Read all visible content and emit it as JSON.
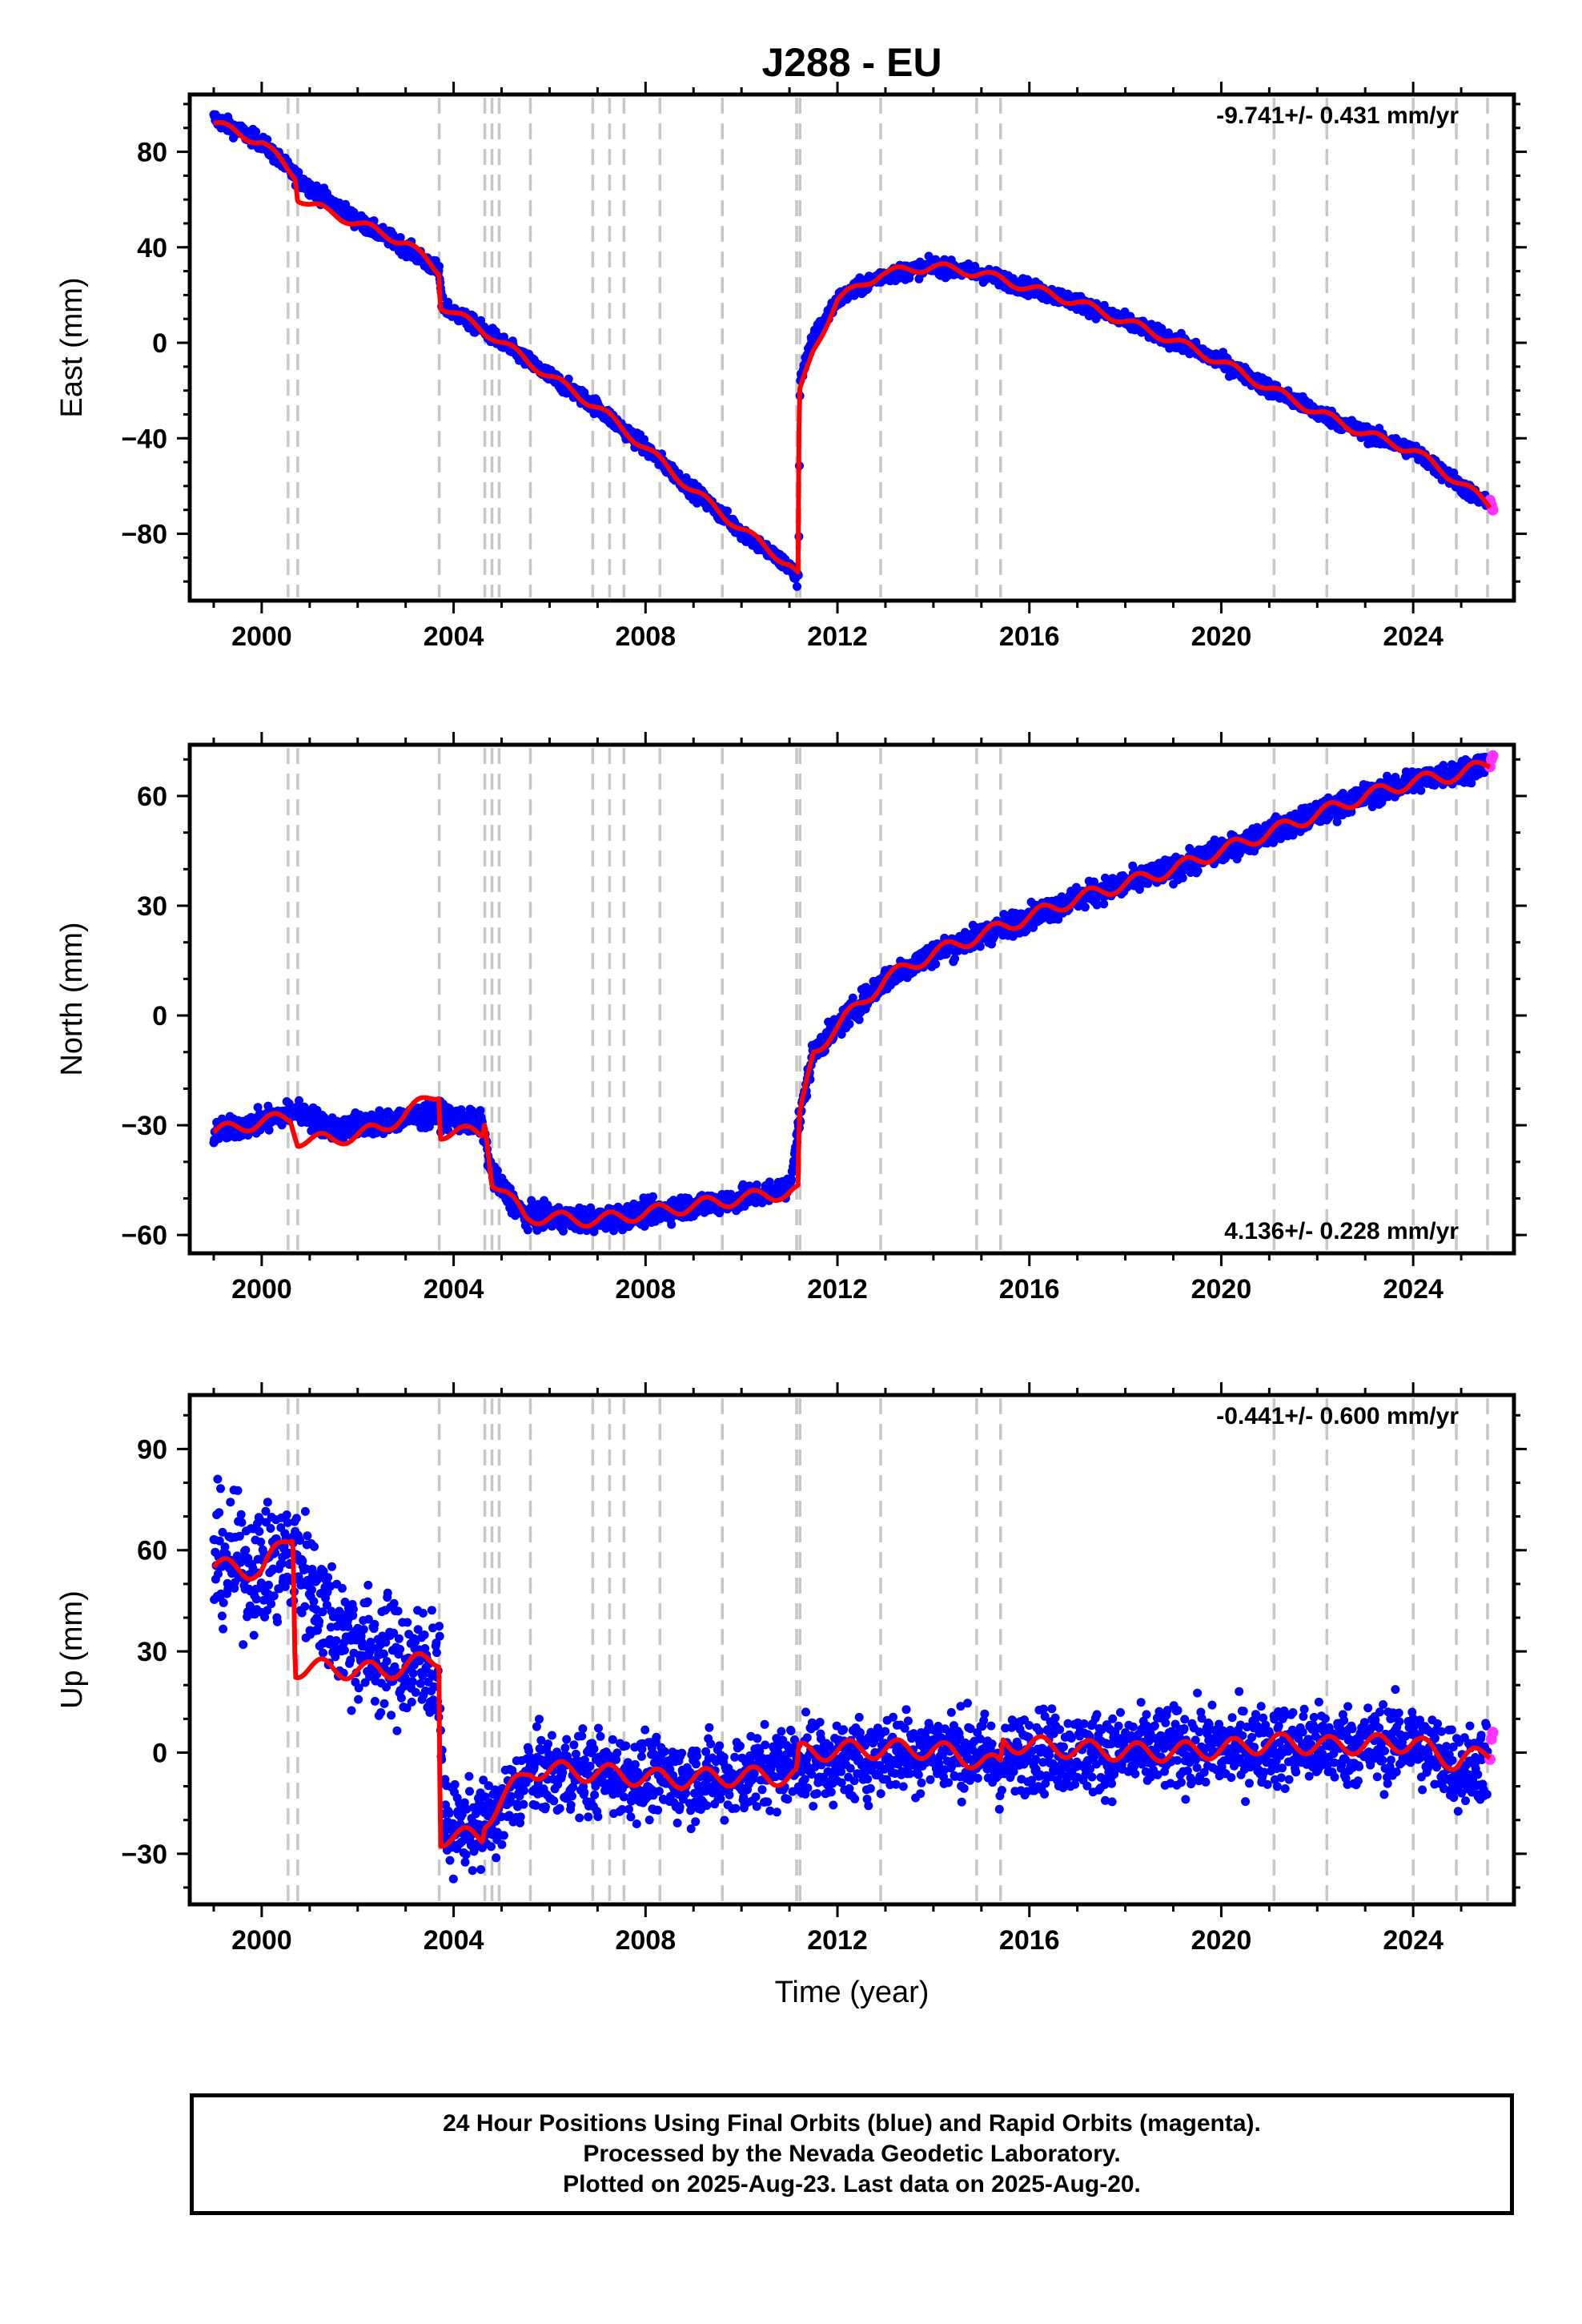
{
  "title": "J288 - EU",
  "footer": {
    "line1": "24 Hour Positions Using Final Orbits (blue) and Rapid Orbits (magenta).",
    "line2": "Processed by the Nevada Geodetic Laboratory.",
    "line3": "Plotted on 2025-Aug-23. Last data on 2025-Aug-20."
  },
  "colors": {
    "final_orbits": "#0000ff",
    "rapid_orbits": "#ff33ff",
    "model_fit": "#ff0000",
    "event_lines": "#c8c8c8"
  },
  "event_lines_years": [
    2000.55,
    2000.75,
    2003.7,
    2004.65,
    2004.8,
    2004.95,
    2005.6,
    2006.9,
    2007.25,
    2007.55,
    2008.3,
    2009.6,
    2011.15,
    2011.22,
    2012.9,
    2014.9,
    2015.4,
    2021.1,
    2022.2,
    2024.0,
    2024.9,
    2025.55
  ],
  "chart_data": [
    {
      "type": "scatter",
      "ylabel": "East (mm)",
      "xlabel": "",
      "xlim": [
        1998.5,
        2026.1
      ],
      "ylim": [
        -108,
        104
      ],
      "x_ticks": [
        "2000",
        "2004",
        "2008",
        "2012",
        "2016",
        "2020",
        "2024"
      ],
      "y_ticks": [
        "80",
        "40",
        "0",
        "−40",
        "−80"
      ],
      "rate": "-9.741+/- 0.431 mm/yr",
      "rate_position": "top-right",
      "series": [
        {
          "role": "final_orbits",
          "x": [
            1999.0,
            2000.0,
            2000.8,
            2002.0,
            2003.0,
            2003.7,
            2003.75,
            2004.8,
            2006.0,
            2007.0,
            2008.0,
            2009.0,
            2010.0,
            2011.0,
            2011.19,
            2011.22,
            2011.5,
            2012.0,
            2012.9,
            2014.0,
            2015.0,
            2016.0,
            2017.0,
            2018.0,
            2019.0,
            2020.0,
            2021.0,
            2022.0,
            2023.0,
            2024.0,
            2025.0,
            2025.55
          ],
          "y": [
            94,
            84,
            68,
            51,
            40,
            30,
            16,
            3,
            -14,
            -27,
            -44,
            -62,
            -79,
            -94,
            -100,
            -15,
            2,
            18,
            28,
            32,
            29,
            23,
            17,
            9,
            1,
            -8,
            -19,
            -29,
            -38,
            -45,
            -60,
            -68
          ]
        },
        {
          "role": "rapid_orbits",
          "x": [
            2025.6,
            2025.63,
            2025.66
          ],
          "y": [
            -66,
            -68,
            -70
          ]
        },
        {
          "role": "model_fit",
          "x": [
            1999.0,
            2000.0,
            2000.7,
            2000.75,
            2001.0,
            2002.0,
            2003.0,
            2003.7,
            2003.72,
            2004.8,
            2006.0,
            2007.0,
            2008.0,
            2009.0,
            2010.0,
            2011.0,
            2011.19,
            2011.2,
            2011.5,
            2012.0,
            2012.9,
            2014.0,
            2015.0,
            2016.0,
            2017.0,
            2018.0,
            2019.0,
            2020.0,
            2021.0,
            2022.0,
            2023.0,
            2024.0,
            2025.0,
            2025.6
          ],
          "y": [
            92,
            84,
            70,
            61,
            58,
            50,
            42,
            30,
            16,
            3,
            -14,
            -27,
            -44,
            -62,
            -78,
            -93,
            -98,
            -22,
            -3,
            18,
            29,
            32,
            29,
            23,
            17,
            9,
            1,
            -8,
            -19,
            -29,
            -38,
            -45,
            -59,
            -68
          ]
        }
      ]
    },
    {
      "type": "scatter",
      "ylabel": "North (mm)",
      "xlabel": "",
      "xlim": [
        1998.5,
        2026.1
      ],
      "ylim": [
        -65,
        74
      ],
      "x_ticks": [
        "2000",
        "2004",
        "2008",
        "2012",
        "2016",
        "2020",
        "2024"
      ],
      "y_ticks": [
        "60",
        "30",
        "0",
        "−30",
        "−60"
      ],
      "rate": "4.136+/- 0.228 mm/yr",
      "rate_position": "bottom-right",
      "series": [
        {
          "role": "final_orbits",
          "x": [
            1999.0,
            2000.0,
            2000.7,
            2001.5,
            2002.5,
            2003.7,
            2004.6,
            2004.8,
            2005.5,
            2007.0,
            2008.5,
            2010.0,
            2011.0,
            2011.2,
            2011.5,
            2012.0,
            2013.0,
            2014.0,
            2015.0,
            2016.0,
            2017.0,
            2018.0,
            2019.0,
            2020.0,
            2021.0,
            2022.0,
            2023.0,
            2024.0,
            2025.0,
            2025.55
          ],
          "y": [
            -32,
            -29,
            -26,
            -31,
            -29,
            -27,
            -30,
            -44,
            -55,
            -56,
            -53,
            -50,
            -47,
            -29,
            -10,
            -3,
            10,
            17,
            22,
            27,
            32,
            36,
            40,
            45,
            50,
            55,
            60,
            64,
            67,
            69
          ]
        },
        {
          "role": "rapid_orbits",
          "x": [
            2025.6,
            2025.63,
            2025.66
          ],
          "y": [
            68,
            70,
            71
          ]
        },
        {
          "role": "model_fit",
          "x": [
            1999.0,
            2000.0,
            2000.6,
            2000.75,
            2001.5,
            2002.5,
            2003.7,
            2003.72,
            2004.6,
            2004.65,
            2004.8,
            2005.5,
            2007.0,
            2008.5,
            2010.0,
            2011.19,
            2011.2,
            2011.5,
            2012.0,
            2013.0,
            2014.0,
            2015.0,
            2016.0,
            2017.0,
            2018.0,
            2019.0,
            2020.0,
            2021.0,
            2022.0,
            2023.0,
            2024.0,
            2025.0,
            2025.6
          ],
          "y": [
            -32,
            -29,
            -28,
            -34,
            -34,
            -31,
            -21,
            -32,
            -32,
            -28,
            -45,
            -55,
            -56,
            -53,
            -50,
            -48,
            -29,
            -10,
            -3,
            10,
            17,
            22,
            27,
            32,
            36,
            40,
            45,
            50,
            55,
            60,
            64,
            66,
            69
          ]
        }
      ]
    },
    {
      "type": "scatter",
      "ylabel": "Up (mm)",
      "xlabel": "Time (year)",
      "xlim": [
        1998.5,
        2026.1
      ],
      "ylim": [
        -45,
        106
      ],
      "x_ticks": [
        "2000",
        "2004",
        "2008",
        "2012",
        "2016",
        "2020",
        "2024"
      ],
      "y_ticks": [
        "90",
        "60",
        "30",
        "0",
        "−30"
      ],
      "rate": "-0.441+/- 0.600 mm/yr",
      "rate_position": "top-right",
      "series": [
        {
          "role": "final_orbits",
          "x": [
            1999.0,
            2000.0,
            2000.7,
            2001.5,
            2002.5,
            2003.7,
            2003.8,
            2004.6,
            2005.0,
            2005.6,
            2007.0,
            2008.5,
            2010.0,
            2011.2,
            2012.0,
            2013.0,
            2014.0,
            2015.0,
            2015.4,
            2016.0,
            2017.0,
            2018.0,
            2019.0,
            2020.0,
            2021.0,
            2022.0,
            2023.0,
            2024.0,
            2025.0,
            2025.55
          ],
          "y": [
            57,
            55,
            58,
            38,
            28,
            25,
            -22,
            -22,
            -17,
            -6,
            -6,
            -8,
            -7,
            -2,
            -3,
            0,
            1,
            0,
            -4,
            1,
            0,
            0,
            1,
            1,
            2,
            2,
            2,
            3,
            -5,
            -2
          ]
        },
        {
          "role": "rapid_orbits",
          "x": [
            2025.6,
            2025.63,
            2025.66
          ],
          "y": [
            -2,
            4,
            6
          ]
        },
        {
          "role": "model_fit",
          "x": [
            1999.0,
            2000.0,
            2000.65,
            2000.7,
            2001.3,
            2002.5,
            2003.7,
            2003.72,
            2004.6,
            2004.65,
            2004.95,
            2005.6,
            2007.0,
            2008.5,
            2010.0,
            2011.15,
            2011.2,
            2012.5,
            2014.0,
            2015.4,
            2015.45,
            2017.0,
            2018.5,
            2020.0,
            2021.1,
            2022.2,
            2024.0,
            2024.9,
            2025.6
          ],
          "y": [
            55,
            54,
            65,
            25,
            25,
            24,
            28,
            -25,
            -25,
            -20,
            -15,
            -5,
            -6,
            -8,
            -7,
            -7,
            0,
            1,
            1,
            -4,
            3,
            1,
            0,
            1,
            3,
            2,
            3,
            -3,
            0
          ]
        }
      ]
    }
  ]
}
